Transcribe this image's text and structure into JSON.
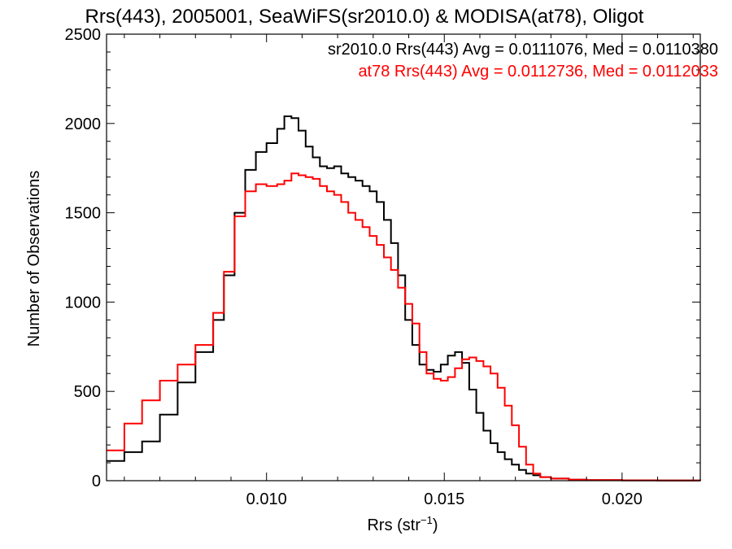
{
  "chart_data": {
    "type": "line",
    "title": "Rrs(443), 2005001, SeaWiFS(sr2010.0) & MODISA(at78), Oligot",
    "xlabel": "Rrs (str",
    "xlabel_sup": "−1",
    "xlabel_suffix": ")",
    "ylabel": "Number of Observations",
    "xlim": [
      0.0055,
      0.0222
    ],
    "ylim": [
      0,
      2500
    ],
    "xticks": [
      {
        "value": 0.01,
        "label": "0.010"
      },
      {
        "value": 0.015,
        "label": "0.015"
      },
      {
        "value": 0.02,
        "label": "0.020"
      }
    ],
    "yticks": [
      {
        "value": 0,
        "label": "0"
      },
      {
        "value": 500,
        "label": "500"
      },
      {
        "value": 1000,
        "label": "1000"
      },
      {
        "value": 1500,
        "label": "1500"
      },
      {
        "value": 2000,
        "label": "2000"
      },
      {
        "value": 2500,
        "label": "2500"
      }
    ],
    "grid": false,
    "legend_position": "top-right",
    "series": [
      {
        "name": "sr2010.0 Rrs(443) Avg = 0.0111076, Med = 0.0110380",
        "color": "#000000",
        "style": "step",
        "x": [
          0.0055,
          0.006,
          0.0065,
          0.007,
          0.0075,
          0.008,
          0.0085,
          0.0088,
          0.0091,
          0.0094,
          0.0097,
          0.01,
          0.0103,
          0.0105,
          0.0107,
          0.0109,
          0.0111,
          0.0113,
          0.0115,
          0.0117,
          0.0119,
          0.0121,
          0.0123,
          0.0125,
          0.0127,
          0.0129,
          0.0131,
          0.0133,
          0.0135,
          0.0137,
          0.0139,
          0.0141,
          0.0143,
          0.0145,
          0.0147,
          0.0149,
          0.0151,
          0.0153,
          0.0155,
          0.0157,
          0.0159,
          0.0161,
          0.0163,
          0.0165,
          0.0167,
          0.0169,
          0.0171,
          0.0173,
          0.0175,
          0.0177,
          0.018,
          0.0185,
          0.019,
          0.02,
          0.021,
          0.0222
        ],
        "y": [
          110,
          160,
          220,
          370,
          550,
          720,
          900,
          1150,
          1500,
          1740,
          1840,
          1890,
          1970,
          2040,
          2030,
          1960,
          1870,
          1810,
          1760,
          1750,
          1760,
          1720,
          1700,
          1680,
          1650,
          1620,
          1560,
          1460,
          1330,
          1150,
          900,
          760,
          650,
          620,
          610,
          650,
          700,
          720,
          660,
          510,
          380,
          280,
          210,
          160,
          120,
          90,
          60,
          40,
          30,
          20,
          12,
          6,
          3,
          2,
          1,
          0
        ]
      },
      {
        "name": "at78 Rrs(443) Avg = 0.0112736, Med = 0.0112033",
        "color": "#ff0000",
        "style": "step",
        "x": [
          0.0055,
          0.006,
          0.0065,
          0.007,
          0.0075,
          0.008,
          0.0085,
          0.0088,
          0.0091,
          0.0094,
          0.0097,
          0.01,
          0.0103,
          0.0105,
          0.0107,
          0.0109,
          0.0111,
          0.0113,
          0.0115,
          0.0117,
          0.0119,
          0.0121,
          0.0123,
          0.0125,
          0.0127,
          0.0129,
          0.0131,
          0.0133,
          0.0135,
          0.0137,
          0.0139,
          0.0141,
          0.0143,
          0.0145,
          0.0147,
          0.0149,
          0.0151,
          0.0153,
          0.0155,
          0.0157,
          0.0159,
          0.0161,
          0.0163,
          0.0165,
          0.0167,
          0.0169,
          0.0171,
          0.0173,
          0.0175,
          0.0177,
          0.018,
          0.0185,
          0.019,
          0.02,
          0.021,
          0.0222
        ],
        "y": [
          170,
          320,
          450,
          560,
          650,
          760,
          940,
          1170,
          1480,
          1620,
          1660,
          1650,
          1660,
          1680,
          1720,
          1710,
          1700,
          1690,
          1650,
          1620,
          1600,
          1560,
          1500,
          1460,
          1420,
          1370,
          1320,
          1250,
          1180,
          1080,
          990,
          880,
          720,
          600,
          570,
          560,
          580,
          630,
          680,
          690,
          670,
          640,
          600,
          520,
          420,
          310,
          190,
          90,
          40,
          20,
          12,
          6,
          3,
          2,
          1,
          0
        ]
      }
    ]
  }
}
